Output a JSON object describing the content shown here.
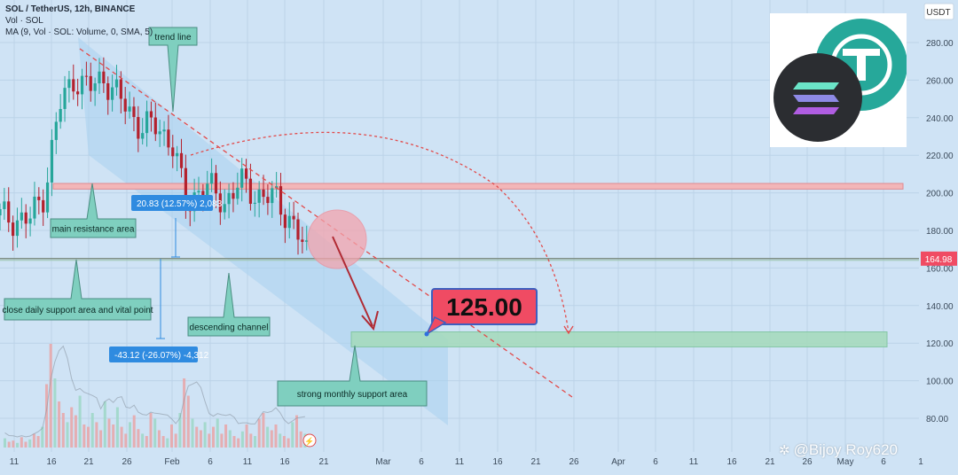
{
  "chart_data": {
    "type": "candlestick",
    "title": "SOL / TetherUS, 12h, BINANCE",
    "indicators": [
      "Vol · SOL",
      "MA (9, Vol · SOL: Volume, 0, SMA, 5)"
    ],
    "currency": "USDT",
    "ylim": [
      75,
      295
    ],
    "y_ticks": [
      "280.00",
      "260.00",
      "240.00",
      "220.00",
      "200.00",
      "180.00",
      "160.00",
      "140.00",
      "120.00",
      "100.00",
      "80.00"
    ],
    "x_ticks": [
      "11",
      "16",
      "21",
      "26",
      "Feb",
      "6",
      "11",
      "16",
      "21",
      "Mar",
      "6",
      "11",
      "16",
      "21",
      "26",
      "Apr",
      "6",
      "11",
      "16",
      "21",
      "26",
      "May",
      "6",
      "1"
    ],
    "last_price": "164.98",
    "price_series_approx": [
      {
        "x": "2024-01-08",
        "y": 188
      },
      {
        "x": "2024-01-13",
        "y": 185
      },
      {
        "x": "2024-01-15",
        "y": 200
      },
      {
        "x": "2024-01-17",
        "y": 245
      },
      {
        "x": "2024-01-19",
        "y": 262
      },
      {
        "x": "2024-01-21",
        "y": 255
      },
      {
        "x": "2024-01-23",
        "y": 262
      },
      {
        "x": "2024-01-25",
        "y": 250
      },
      {
        "x": "2024-01-28",
        "y": 235
      },
      {
        "x": "2024-01-30",
        "y": 235
      },
      {
        "x": "2024-02-01",
        "y": 228
      },
      {
        "x": "2024-02-03",
        "y": 192
      },
      {
        "x": "2024-02-05",
        "y": 205
      },
      {
        "x": "2024-02-08",
        "y": 195
      },
      {
        "x": "2024-02-10",
        "y": 205
      },
      {
        "x": "2024-02-12",
        "y": 200
      },
      {
        "x": "2024-02-15",
        "y": 196
      },
      {
        "x": "2024-02-17",
        "y": 185
      },
      {
        "x": "2024-02-19",
        "y": 167
      }
    ],
    "levels": {
      "main_resistance": [
        202,
        205
      ],
      "support_line": 165,
      "monthly_support": [
        118,
        126
      ],
      "target": 125.0
    },
    "measurements": [
      {
        "label": "20.83 (12.57%) 2,083"
      },
      {
        "label": "-43.12 (-26.07%) -4,312"
      }
    ],
    "annotations": [
      "trend line",
      "main resistance area",
      "close daily support area and vital point",
      "descending channel",
      "strong monthly support area"
    ],
    "target_label": "125.00",
    "colors": {
      "background": "#cfe3f5",
      "channel": "#a9d2ef",
      "resistance": "#f2b6b8",
      "support": "#a6dbbe",
      "target_box": "#f04b63",
      "candle_up": "#26a69a",
      "candle_down": "#b4212d",
      "label_box": "#7fcfbf",
      "measure_box": "#2f8be0"
    }
  },
  "watermark": "@Bijoy Roy620",
  "logos": [
    "tether-logo-icon",
    "solana-logo-icon"
  ]
}
